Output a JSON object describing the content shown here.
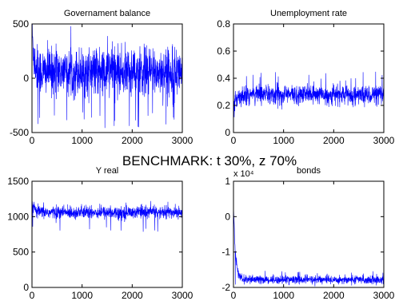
{
  "suptitle": "BENCHMARK: t 30%, z 70%",
  "series_color": "#0000ff",
  "chart_data": [
    {
      "type": "line",
      "title": "Governament balance",
      "xlim": [
        0,
        3000
      ],
      "ylim": [
        -500,
        500
      ],
      "xticks": [
        "0",
        "1000",
        "2000",
        "3000"
      ],
      "yticks": [
        "-500",
        "0",
        "500"
      ],
      "series": [
        {
          "n": 3000,
          "start": 460,
          "mean": 60,
          "noise_sd": 110,
          "spike_extremes": [
            -460,
            300
          ]
        }
      ]
    },
    {
      "type": "line",
      "title": "Unemployment rate",
      "xlim": [
        0,
        3000
      ],
      "ylim": [
        0,
        0.8
      ],
      "xticks": [
        "0",
        "1000",
        "2000",
        "3000"
      ],
      "yticks": [
        "0",
        "0.2",
        "0.4",
        "0.6",
        "0.8"
      ],
      "series": [
        {
          "n": 3000,
          "start": 0.14,
          "mean": 0.28,
          "noise_sd": 0.035,
          "spike_extremes": [
            0.18,
            0.45
          ]
        }
      ]
    },
    {
      "type": "line",
      "title": "Y real",
      "xlim": [
        0,
        3000
      ],
      "ylim": [
        0,
        1500
      ],
      "xticks": [
        "0",
        "1000",
        "2000",
        "3000"
      ],
      "yticks": [
        "0",
        "500",
        "1000",
        "1500"
      ],
      "series": [
        {
          "n": 3000,
          "start": 1220,
          "mean": 1060,
          "noise_sd": 45,
          "spike_extremes": [
            780,
            1200
          ]
        }
      ]
    },
    {
      "type": "line",
      "title": "bonds",
      "exponent_label": "x 10⁴",
      "xlim": [
        0,
        3000
      ],
      "ylim": [
        -2,
        1
      ],
      "xticks": [
        "0",
        "1000",
        "2000",
        "3000"
      ],
      "yticks": [
        "-2",
        "-1",
        "0",
        "1"
      ],
      "series": [
        {
          "n": 3000,
          "start": 0.35,
          "mean": -1.78,
          "noise_sd": 0.06,
          "spike_extremes": [
            -1.92,
            -1.52
          ]
        }
      ]
    }
  ]
}
